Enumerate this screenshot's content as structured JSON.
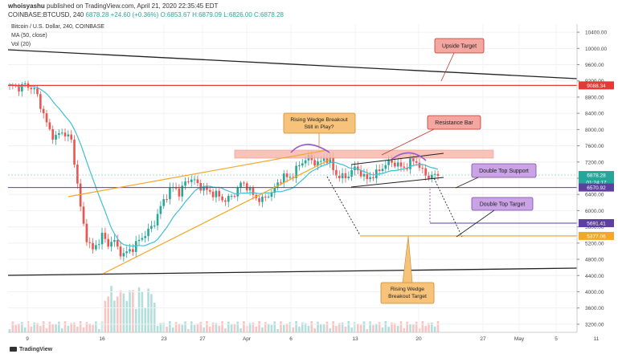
{
  "header": {
    "publisher": "whoisyashu",
    "published_text": "published on TradingView.com, April 21, 2020 22:35:45 EDT",
    "symbol": "COINBASE:BTCUSD, 240",
    "price": "6878.28",
    "change": "+24.60 (+0.36%)",
    "ohlc": "O:6853.67 H:6879.09 L:6826.00 C:6878.28"
  },
  "legend": {
    "title": "Bitcoin / U.S. Dollar, 240, COINBASE",
    "ma": "MA (50, close)",
    "vol": "Vol (20)"
  },
  "price_axis": {
    "ticks": [
      "10400.00",
      "10000.00",
      "9600.00",
      "9200.00",
      "8800.00",
      "8400.00",
      "8000.00",
      "7600.00",
      "7200.00",
      "6800.00",
      "6400.00",
      "6000.00",
      "5600.00",
      "5200.00",
      "4800.00",
      "4400.00",
      "4000.00",
      "3600.00",
      "3200.00"
    ],
    "ylim": [
      3000,
      10600
    ]
  },
  "time_axis": {
    "ticks": [
      "9",
      "16",
      "23",
      "27",
      "Apr",
      "6",
      "13",
      "20",
      "27",
      "May",
      "5",
      "11"
    ]
  },
  "price_labels": [
    {
      "text": "9088.34",
      "value": 9088.34,
      "color": "#e53935"
    },
    {
      "text": "6878.28",
      "value": 6878.28,
      "color": "#26a69a"
    },
    {
      "text": "01:24:17",
      "value": 6700,
      "color": "#26a69a"
    },
    {
      "text": "6570.92",
      "value": 6570.92,
      "color": "#5c3f9e"
    },
    {
      "text": "5691.41",
      "value": 5691.41,
      "color": "#5c3f9e"
    },
    {
      "text": "5377.06",
      "value": 5377.06,
      "color": "#f5a623"
    }
  ],
  "annotations": {
    "upside_target": "Upside Target",
    "rising_wedge": "Rising Wedge Breakout Still in Play?",
    "resistance_bar": "Resistance Bar",
    "double_top_support": "Double Top Support",
    "double_top_target": "Double Top Target",
    "wedge_target": "Rising Wedge Breakout Target"
  },
  "footer": {
    "brand": "TradingView"
  },
  "colors": {
    "up": "#26a69a",
    "down": "#ef5350",
    "ma": "#3fbfd6",
    "wedge": "#f5a623",
    "resistance": "#f8b4a8",
    "purple": "#9b59d0",
    "red_line": "#e53935"
  },
  "chart_data": {
    "type": "candlestick",
    "series": [
      {
        "name": "MA (50, close)"
      },
      {
        "name": "Vol (20)"
      }
    ],
    "close_path": [
      9060,
      9070,
      9030,
      9100,
      9050,
      8950,
      8600,
      8200,
      7900,
      7800,
      7950,
      7880,
      7700,
      6800,
      5800,
      5300,
      5000,
      5200,
      5400,
      5150,
      5300,
      5050,
      4900,
      5000,
      5100,
      5250,
      5400,
      5500,
      5700,
      6000,
      6300,
      6500,
      6600,
      6400,
      6700,
      6800,
      6700,
      6600,
      6500,
      6450,
      6400,
      6300,
      6250,
      6350,
      6500,
      6700,
      6600,
      6400,
      6300,
      6250,
      6400,
      6450,
      6700,
      6850,
      6800,
      6900,
      7100,
      7250,
      7300,
      7200,
      7150,
      7300,
      7250,
      6900,
      6850,
      6800,
      6950,
      7050,
      6950,
      6750,
      6850,
      6900,
      7050,
      7150,
      7200,
      7150,
      7050,
      7100,
      7250,
      7200,
      6950,
      6850,
      6850,
      6878
    ]
  }
}
